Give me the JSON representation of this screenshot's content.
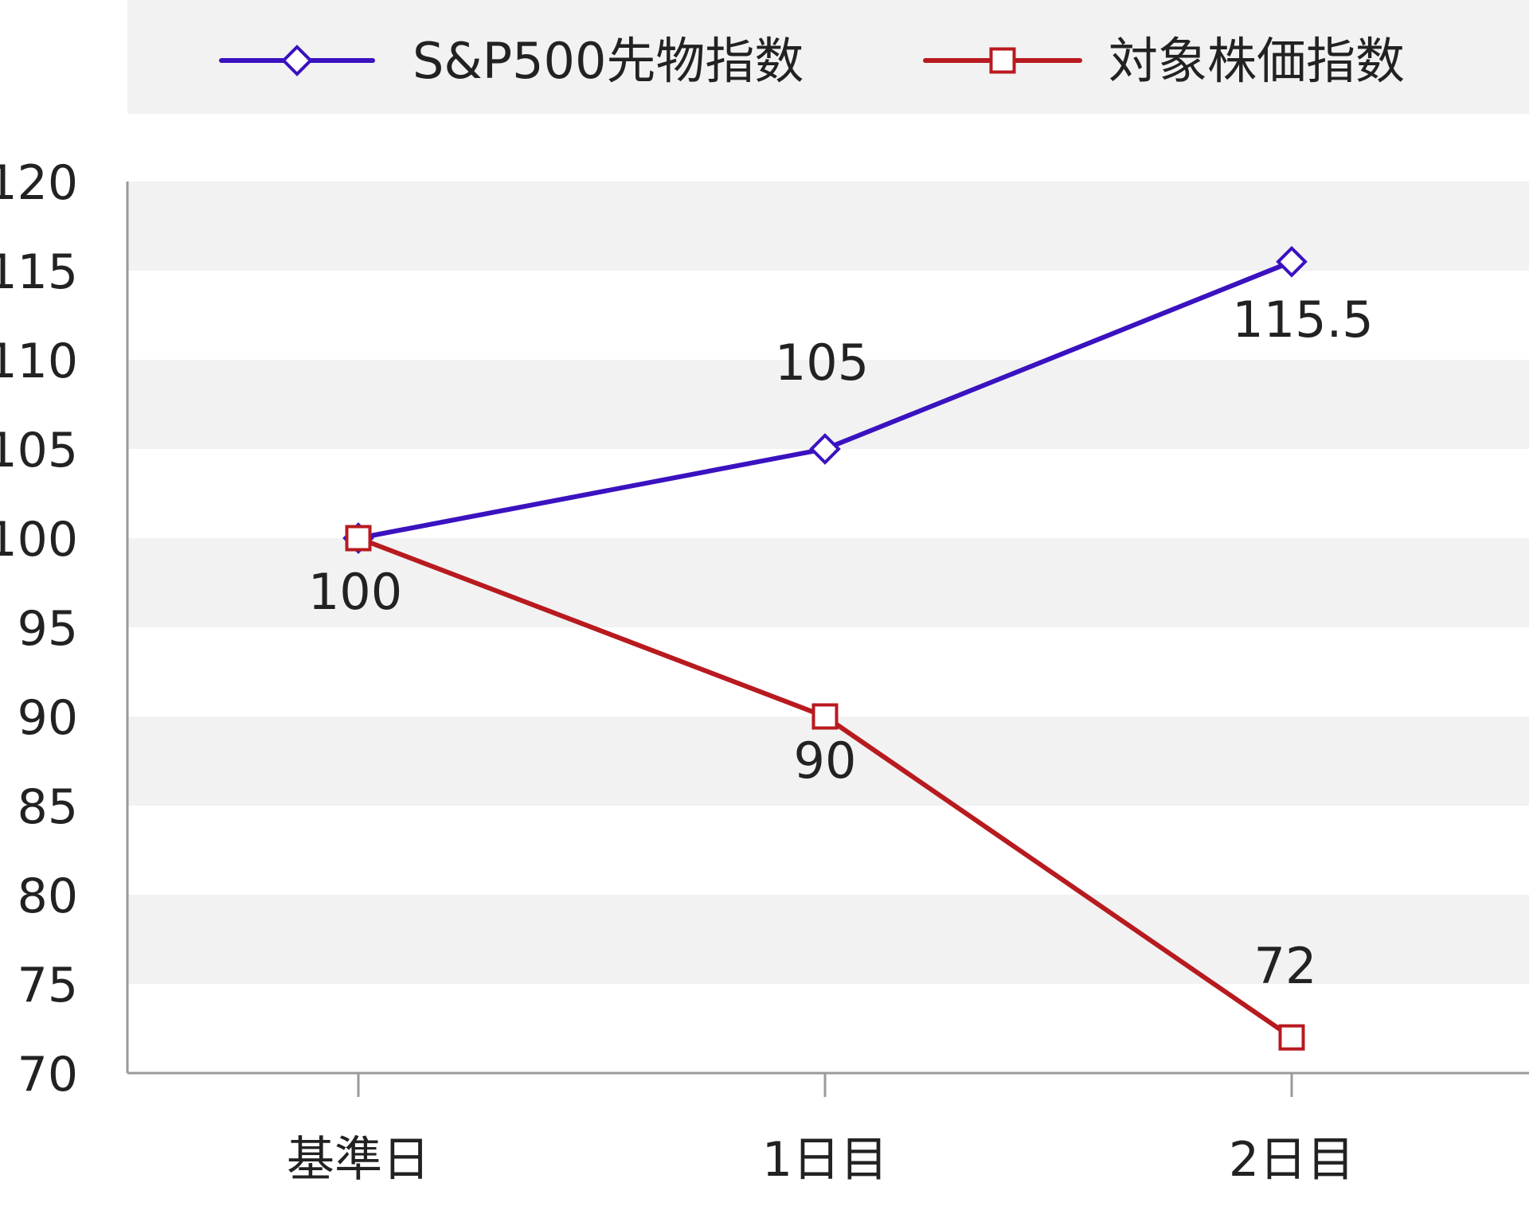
{
  "chart_data": {
    "type": "line",
    "title": "",
    "xlabel": "",
    "ylabel": "",
    "categories": [
      "基準日",
      "1日目",
      "2日目"
    ],
    "ylim": [
      70,
      120
    ],
    "yticks": [
      70,
      75,
      80,
      85,
      90,
      95,
      100,
      105,
      110,
      115,
      120
    ],
    "grid": "alternating horizontal bands",
    "legend_position": "top",
    "series": [
      {
        "name": "S&P500先物指数",
        "color": "#3a12c0",
        "marker": "diamond",
        "values": [
          100,
          105,
          115.5
        ],
        "labels": [
          "",
          "105",
          "115.5"
        ]
      },
      {
        "name": "対象株価指数",
        "color": "#b81a1f",
        "marker": "square",
        "values": [
          100,
          90,
          72
        ],
        "labels": [
          "100",
          "90",
          "72"
        ]
      }
    ]
  }
}
